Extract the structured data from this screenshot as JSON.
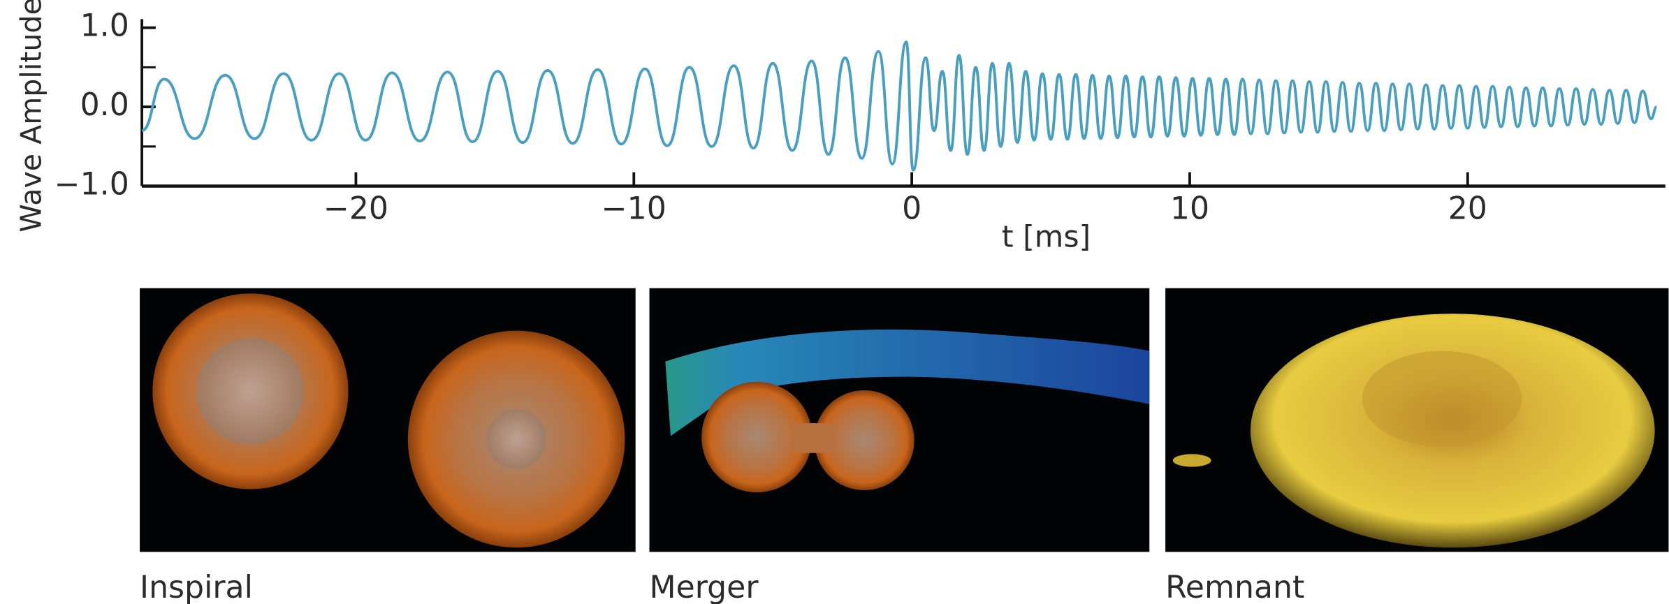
{
  "chart_data": {
    "type": "line",
    "xlabel": "t [ms]",
    "ylabel": "Wave Amplitude",
    "color": "#4a9fbf",
    "x": [
      -27.7,
      -26.9,
      -25.8,
      -24.7,
      -23.65,
      -22.6,
      -21.6,
      -20.6,
      -19.65,
      -18.7,
      -17.7,
      -16.7,
      -15.8,
      -14.9,
      -14.0,
      -13.1,
      -12.2,
      -11.3,
      -10.45,
      -9.6,
      -8.8,
      -8.0,
      -7.2,
      -6.4,
      -5.7,
      -5.0,
      -4.3,
      -3.6,
      -3.0,
      -2.4,
      -1.8,
      -1.2,
      -0.7,
      -0.2,
      0.05,
      0.5,
      0.8,
      1.1,
      1.4,
      1.7,
      2.0,
      2.3,
      2.6,
      2.9,
      3.2,
      3.5,
      3.8,
      4.1,
      4.4,
      4.7,
      5.0,
      5.3,
      5.6,
      5.9,
      6.2,
      6.5,
      6.8,
      7.1,
      7.4,
      7.7,
      8.0,
      8.3,
      8.6,
      8.9,
      9.2,
      9.5,
      9.8,
      10.1,
      10.4,
      10.7,
      11.0,
      11.3,
      11.6,
      11.9,
      12.2,
      12.5,
      12.8,
      13.1,
      13.4,
      13.7,
      14.0,
      14.3,
      14.6,
      14.9,
      15.2,
      15.5,
      15.8,
      16.1,
      16.4,
      16.7,
      17.0,
      17.3,
      17.6,
      17.9,
      18.2,
      18.5,
      18.8,
      19.1,
      19.4,
      19.7,
      20.0,
      20.3,
      20.6,
      20.9,
      21.2,
      21.5,
      21.8,
      22.1,
      22.4,
      22.7,
      23.0,
      23.3,
      23.6,
      23.9,
      24.2,
      24.5,
      24.8,
      25.1,
      25.4,
      25.7,
      26.0,
      26.3,
      26.6,
      26.8
    ],
    "values": [
      -0.3,
      0.35,
      -0.4,
      0.4,
      -0.4,
      0.42,
      -0.42,
      0.42,
      -0.42,
      0.43,
      -0.43,
      0.44,
      -0.44,
      0.45,
      -0.45,
      0.46,
      -0.46,
      0.47,
      -0.47,
      0.48,
      -0.49,
      0.5,
      -0.5,
      0.52,
      -0.52,
      0.55,
      -0.55,
      0.58,
      -0.6,
      0.62,
      -0.65,
      0.7,
      -0.72,
      0.82,
      -0.8,
      0.62,
      -0.3,
      0.45,
      -0.55,
      0.65,
      -0.6,
      0.5,
      -0.55,
      0.55,
      -0.5,
      0.55,
      -0.45,
      0.45,
      -0.42,
      0.42,
      -0.41,
      0.41,
      -0.41,
      0.41,
      -0.4,
      0.4,
      -0.4,
      0.39,
      -0.39,
      0.39,
      -0.38,
      0.38,
      -0.38,
      0.38,
      -0.37,
      0.37,
      -0.37,
      0.36,
      -0.36,
      0.36,
      -0.35,
      0.35,
      -0.35,
      0.35,
      -0.34,
      0.34,
      -0.34,
      0.33,
      -0.33,
      0.33,
      -0.32,
      0.32,
      -0.32,
      0.32,
      -0.31,
      0.31,
      -0.31,
      0.3,
      -0.3,
      0.3,
      -0.3,
      0.29,
      -0.29,
      0.29,
      -0.28,
      0.28,
      -0.28,
      0.27,
      -0.27,
      0.27,
      -0.27,
      0.26,
      -0.26,
      0.26,
      -0.25,
      0.25,
      -0.25,
      0.24,
      -0.24,
      0.24,
      -0.24,
      0.23,
      -0.23,
      0.23,
      -0.22,
      0.22,
      -0.22,
      0.21,
      -0.21,
      0.21,
      -0.2,
      0.2,
      -0.15,
      0.0
    ],
    "xlim": [
      -27.7,
      27.0
    ],
    "ylim": [
      -1.0,
      1.1
    ],
    "xticks": [
      {
        "value": -20,
        "label": "−20"
      },
      {
        "value": -10,
        "label": "−10"
      },
      0,
      10,
      20
    ],
    "yticks": [
      {
        "value": 1.0,
        "label": "1.0"
      },
      {
        "value": 0.0,
        "label": "0.0"
      },
      {
        "value": -1.0,
        "label": "−1.0"
      }
    ],
    "yminorticks": [
      0.5,
      -0.5
    ]
  },
  "panels": [
    {
      "caption": "Inspiral"
    },
    {
      "caption": "Merger"
    },
    {
      "caption": "Remnant"
    }
  ]
}
